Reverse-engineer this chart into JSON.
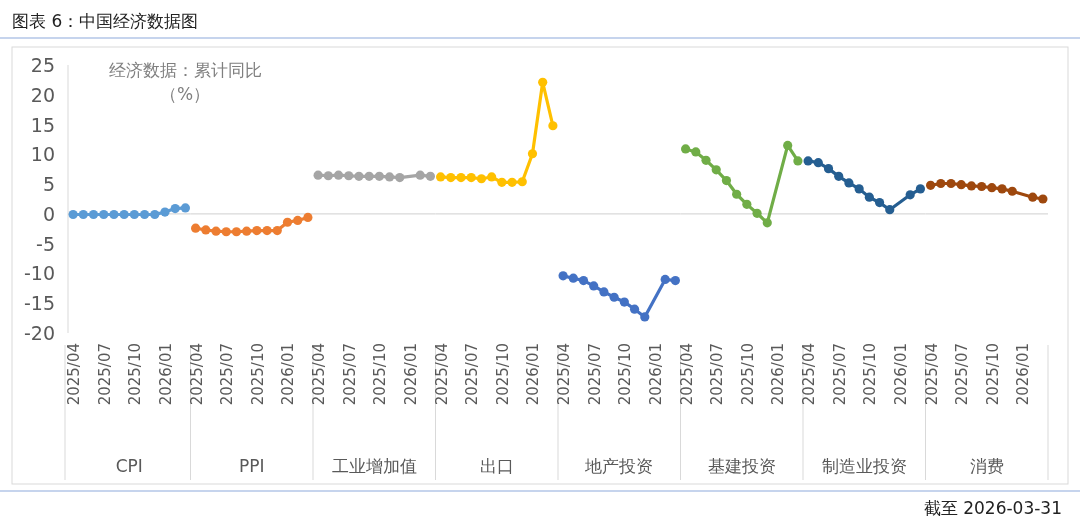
{
  "chart_data": [
    {
      "type": "line",
      "title": "图表 6：中国经济数据图",
      "annotations": [
        "经济数据：累计同比（%）"
      ],
      "xlabel": "CPI",
      "categories": [
        "2025/04",
        null,
        null,
        "2025/07",
        null,
        null,
        "2025/10",
        null,
        null,
        "2026/01",
        null,
        null
      ],
      "ylim": [
        -20,
        25
      ],
      "yticks": [
        -20,
        -15,
        -10,
        -5,
        0,
        5,
        10,
        15,
        20,
        25
      ],
      "marker": "circle",
      "line_style": "solid",
      "series": [
        {
          "color": "#5b9bd5",
          "values": [
            -0.1,
            -0.1,
            -0.1,
            -0.1,
            -0.1,
            -0.1,
            -0.1,
            -0.1,
            -0.1,
            0.3,
            0.9,
            1.0
          ]
        }
      ]
    },
    {
      "type": "line",
      "xlabel": "PPI",
      "categories": [
        "2025/04",
        null,
        null,
        "2025/07",
        null,
        null,
        "2025/10",
        null,
        null,
        "2026/01",
        null,
        null
      ],
      "ylim": [
        -20,
        25
      ],
      "tick_labels": "x",
      "marker": "circle",
      "line_style": "solid",
      "series": [
        {
          "color": "#ed7d31",
          "values": [
            -2.4,
            -2.7,
            -2.9,
            -3.0,
            -3.0,
            -2.9,
            -2.8,
            -2.8,
            -2.8,
            -1.4,
            -1.1,
            -0.6
          ]
        }
      ]
    },
    {
      "type": "line",
      "xlabel": "工业增加值",
      "categories": [
        "2025/04",
        null,
        null,
        "2025/07",
        null,
        null,
        "2025/10",
        null,
        null,
        "2026/01",
        null,
        null
      ],
      "ylim": [
        -20,
        25
      ],
      "tick_labels": "x",
      "marker": "circle",
      "line_style": "solid",
      "series": [
        {
          "color": "#a5a5a5",
          "values": [
            6.5,
            6.4,
            6.5,
            6.4,
            6.3,
            6.3,
            6.3,
            6.2,
            6.1,
            null,
            6.5,
            6.3
          ]
        }
      ]
    },
    {
      "type": "line",
      "xlabel": "出口",
      "categories": [
        "2025/04",
        null,
        null,
        "2025/07",
        null,
        null,
        "2025/10",
        null,
        null,
        "2026/01",
        null,
        null
      ],
      "ylim": [
        -20,
        25
      ],
      "tick_labels": "x",
      "marker": "circle",
      "line_style": "solid",
      "series": [
        {
          "color": "#ffc000",
          "values": [
            6.2,
            6.1,
            6.1,
            6.1,
            5.9,
            6.2,
            5.3,
            5.3,
            5.4,
            10.1,
            22.1,
            14.8
          ]
        }
      ]
    },
    {
      "type": "line",
      "xlabel": "地产投资",
      "categories": [
        "2025/04",
        null,
        null,
        "2025/07",
        null,
        null,
        "2025/10",
        null,
        null,
        "2026/01",
        null,
        null
      ],
      "ylim": [
        -20,
        25
      ],
      "tick_labels": "x",
      "marker": "circle",
      "line_style": "solid",
      "series": [
        {
          "color": "#4472c4",
          "values": [
            -10.4,
            -10.8,
            -11.2,
            -12.1,
            -13.1,
            -14.0,
            -14.8,
            -16.0,
            -17.3,
            null,
            -11.0,
            -11.2
          ]
        }
      ]
    },
    {
      "type": "line",
      "xlabel": "基建投资",
      "categories": [
        "2025/04",
        null,
        null,
        "2025/07",
        null,
        null,
        "2025/10",
        null,
        null,
        "2026/01",
        null,
        null
      ],
      "ylim": [
        -20,
        25
      ],
      "tick_labels": "x",
      "marker": "circle",
      "line_style": "solid",
      "series": [
        {
          "color": "#70ad47",
          "values": [
            10.9,
            10.4,
            9.0,
            7.4,
            5.6,
            3.3,
            1.6,
            0.1,
            -1.5,
            null,
            11.5,
            8.9
          ]
        }
      ]
    },
    {
      "type": "line",
      "xlabel": "制造业投资",
      "categories": [
        "2025/04",
        null,
        null,
        "2025/07",
        null,
        null,
        "2025/10",
        null,
        null,
        "2026/01",
        null,
        null
      ],
      "ylim": [
        -20,
        25
      ],
      "tick_labels": "x",
      "marker": "circle",
      "line_style": "solid",
      "series": [
        {
          "color": "#255e91",
          "values": [
            8.9,
            8.6,
            7.6,
            6.3,
            5.2,
            4.2,
            2.8,
            1.9,
            0.7,
            null,
            3.2,
            4.2
          ]
        }
      ]
    },
    {
      "type": "line",
      "xlabel": "消费",
      "annotations": [
        "截至 2026-03-31"
      ],
      "categories": [
        "2025/04",
        null,
        null,
        "2025/07",
        null,
        null,
        "2025/10",
        null,
        null,
        "2026/01",
        null,
        null
      ],
      "ylim": [
        -20,
        25
      ],
      "tick_labels": "x",
      "marker": "circle",
      "line_style": "solid",
      "series": [
        {
          "color": "#9e480e",
          "values": [
            4.8,
            5.1,
            5.1,
            4.9,
            4.7,
            4.6,
            4.4,
            4.2,
            3.8,
            null,
            2.8,
            2.5
          ]
        }
      ]
    }
  ]
}
